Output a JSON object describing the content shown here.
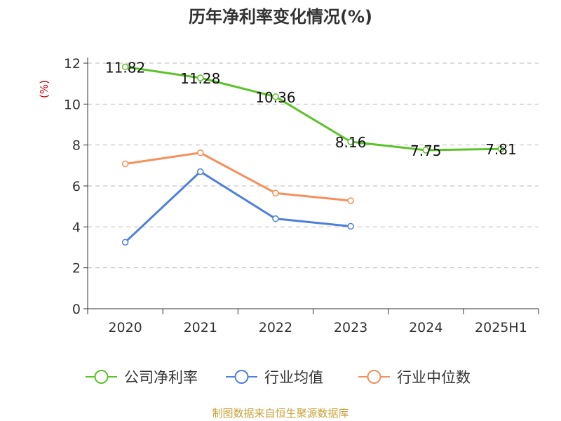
{
  "chart_data": {
    "type": "line",
    "title": "历年净利率变化情况(%)",
    "ylabel": "(%)",
    "xlabel": "",
    "categories": [
      "2020",
      "2021",
      "2022",
      "2023",
      "2024",
      "2025H1"
    ],
    "ylim": [
      0,
      12
    ],
    "yticks": [
      0,
      2,
      4,
      6,
      8,
      10,
      12
    ],
    "grid": true,
    "legend_position": "bottom",
    "series": [
      {
        "name": "公司净利率",
        "color": "#5cc22a",
        "values": [
          11.82,
          11.28,
          10.36,
          8.16,
          7.75,
          7.81
        ],
        "labels": [
          "11.82",
          "11.28",
          "10.36",
          "8.16",
          "7.75",
          "7.81"
        ]
      },
      {
        "name": "行业均值",
        "color": "#4f7fdc",
        "values": [
          3.25,
          6.7,
          4.4,
          4.03,
          null,
          null
        ]
      },
      {
        "name": "行业中位数",
        "color": "#f5905a",
        "values": [
          7.08,
          7.62,
          5.65,
          5.28,
          null,
          null
        ]
      }
    ]
  },
  "source_text": "制图数据来自恒生聚源数据库"
}
